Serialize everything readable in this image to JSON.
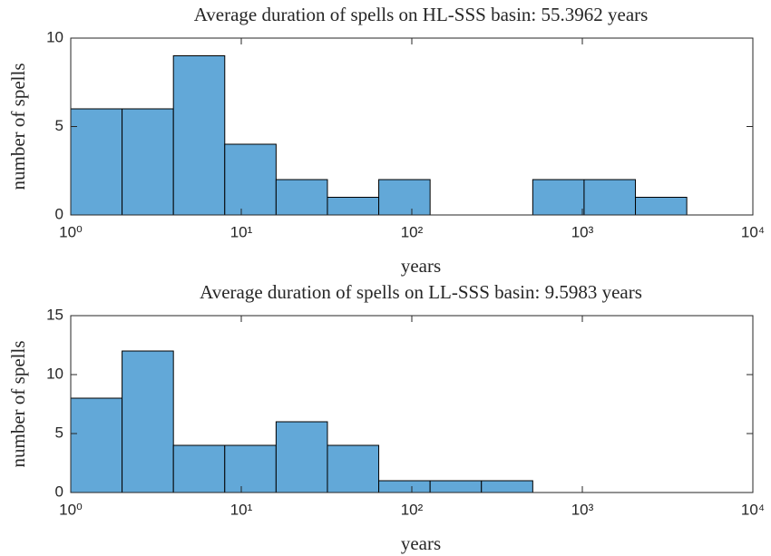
{
  "chart_data": [
    {
      "type": "histogram",
      "title": "Average duration of spells on HL-SSS basin: 55.3962 years",
      "xlabel": "years",
      "ylabel": "number of spells",
      "xscale": "log",
      "color": "#62a8d8",
      "bins": [
        1,
        2,
        4,
        8,
        16,
        32,
        64,
        128,
        256,
        512,
        1024,
        2048,
        4096
      ],
      "values": [
        6,
        6,
        9,
        4,
        2,
        1,
        2,
        0,
        0,
        2,
        2,
        1
      ],
      "xlim": [
        1,
        10000
      ],
      "xticks": [
        {
          "value": 1,
          "label": "10⁰"
        },
        {
          "value": 10,
          "label": "10¹"
        },
        {
          "value": 100,
          "label": "10²"
        },
        {
          "value": 1000,
          "label": "10³"
        },
        {
          "value": 10000,
          "label": "10⁴"
        }
      ],
      "ylim": [
        0,
        10
      ],
      "yticks": [
        0,
        5,
        10
      ]
    },
    {
      "type": "histogram",
      "title": "Average duration of spells on LL-SSS basin: 9.5983 years",
      "xlabel": "years",
      "ylabel": "number of spells",
      "xscale": "log",
      "color": "#62a8d8",
      "bins": [
        1,
        2,
        4,
        8,
        16,
        32,
        64,
        128,
        256,
        512,
        1024,
        2048,
        4096
      ],
      "values": [
        8,
        12,
        4,
        4,
        6,
        4,
        1,
        1,
        1,
        0,
        0,
        0
      ],
      "xlim": [
        1,
        10000
      ],
      "xticks": [
        {
          "value": 1,
          "label": "10⁰"
        },
        {
          "value": 10,
          "label": "10¹"
        },
        {
          "value": 100,
          "label": "10²"
        },
        {
          "value": 1000,
          "label": "10³"
        },
        {
          "value": 10000,
          "label": "10⁴"
        }
      ],
      "ylim": [
        0,
        15
      ],
      "yticks": [
        0,
        5,
        10,
        15
      ]
    }
  ]
}
